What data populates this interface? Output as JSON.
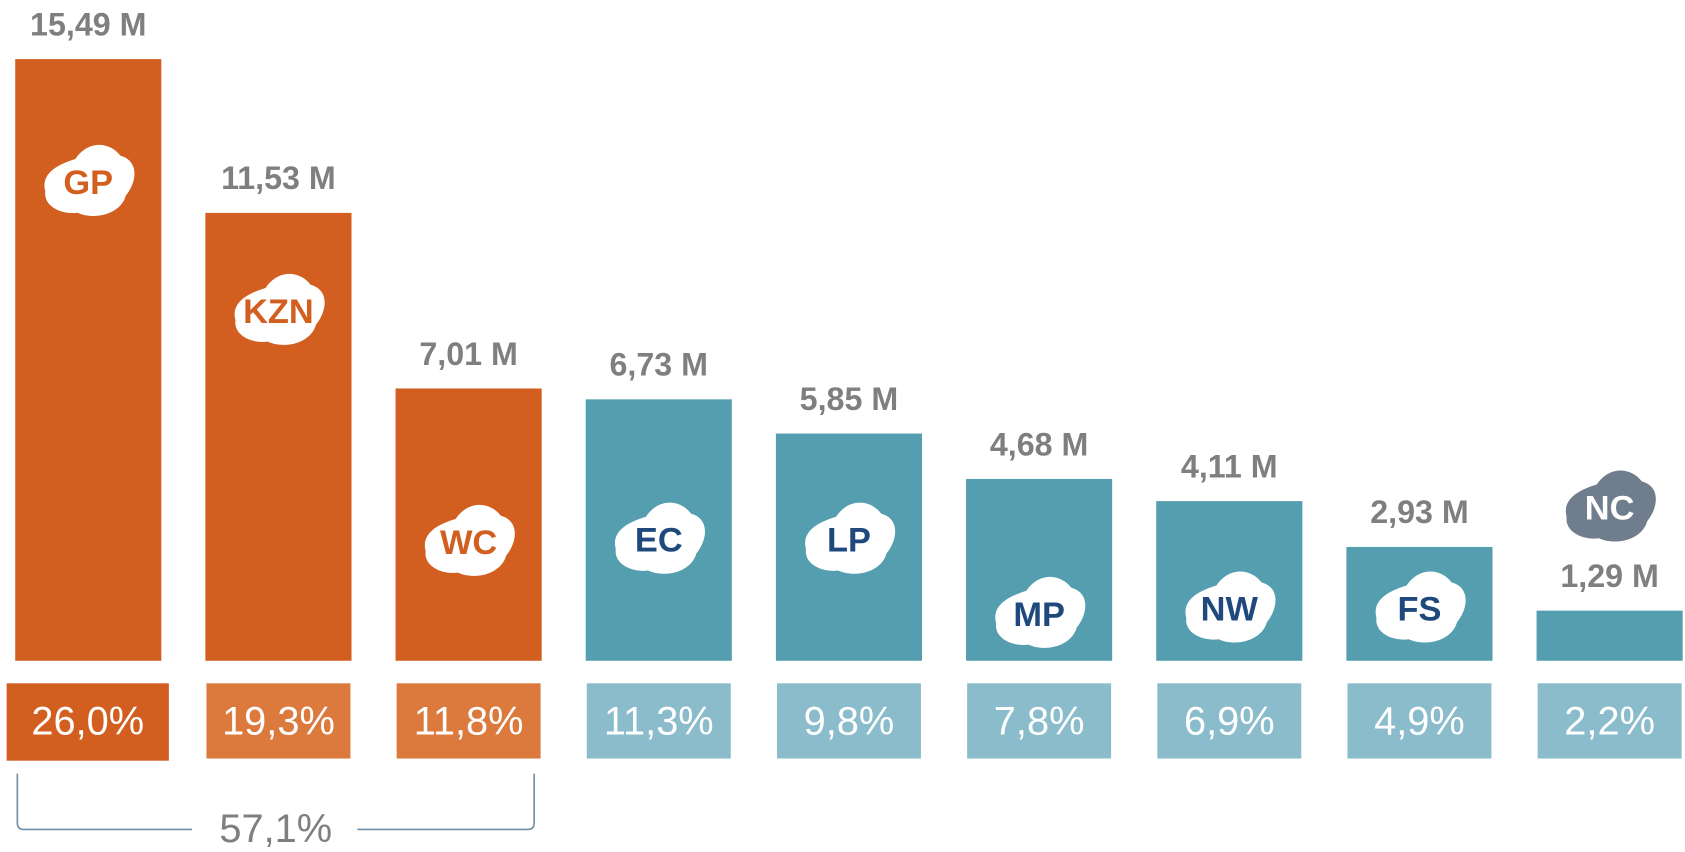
{
  "chart_data": {
    "type": "bar",
    "categories": [
      "GP",
      "KZN",
      "WC",
      "EC",
      "LP",
      "MP",
      "NW",
      "FS",
      "NC"
    ],
    "values": [
      15.49,
      11.53,
      7.01,
      6.73,
      5.85,
      4.68,
      4.11,
      2.93,
      1.29
    ],
    "value_labels": [
      "15,49 M",
      "11,53 M",
      "7,01 M",
      "6,73 M",
      "5,85 M",
      "4,68 M",
      "4,11 M",
      "2,93 M",
      "1,29 M"
    ],
    "colors": [
      "#d25f1f",
      "#d25f1f",
      "#d25f1f",
      "#559eb0",
      "#559eb0",
      "#559eb0",
      "#559eb0",
      "#559eb0",
      "#559eb0"
    ],
    "shares": {
      "values": [
        26.0,
        19.3,
        11.8,
        11.3,
        9.8,
        7.8,
        6.9,
        4.9,
        2.2
      ],
      "value_labels": [
        "26,0%",
        "19,3%",
        "11,8%",
        "11,3%",
        "9,8%",
        "7,8%",
        "6,9%",
        "4,9%",
        "2,2%"
      ],
      "colors": [
        "#d25f1f",
        "#dc7a3e",
        "#dc7a3e",
        "#8bbccb",
        "#8bbccb",
        "#8bbccb",
        "#8bbccb",
        "#8bbccb",
        "#8bbccb"
      ]
    },
    "group_total": {
      "value": 57.1,
      "label": "57,1%"
    }
  }
}
